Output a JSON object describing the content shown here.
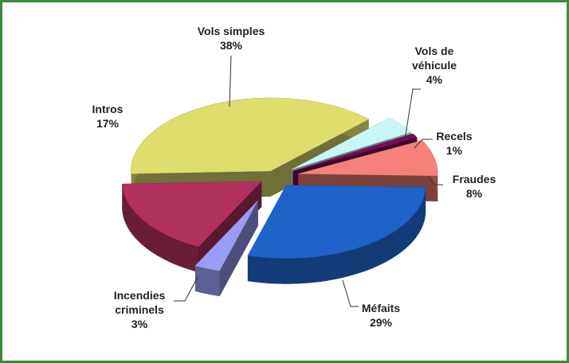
{
  "chart_data": {
    "type": "pie",
    "categories": [
      "Vols simples",
      "Vols de véhicule",
      "Recels",
      "Fraudes",
      "Méfaits",
      "Incendies criminels",
      "Intros"
    ],
    "values": [
      38,
      4,
      1,
      8,
      29,
      3,
      17
    ],
    "value_labels": [
      "38%",
      "4%",
      "1%",
      "8%",
      "29%",
      "3%",
      "17%"
    ],
    "colors": [
      "#dede6e",
      "#c8f6f6",
      "#7a0a5a",
      "#f4827a",
      "#1f62c8",
      "#9a9cf6",
      "#b0305e"
    ]
  }
}
